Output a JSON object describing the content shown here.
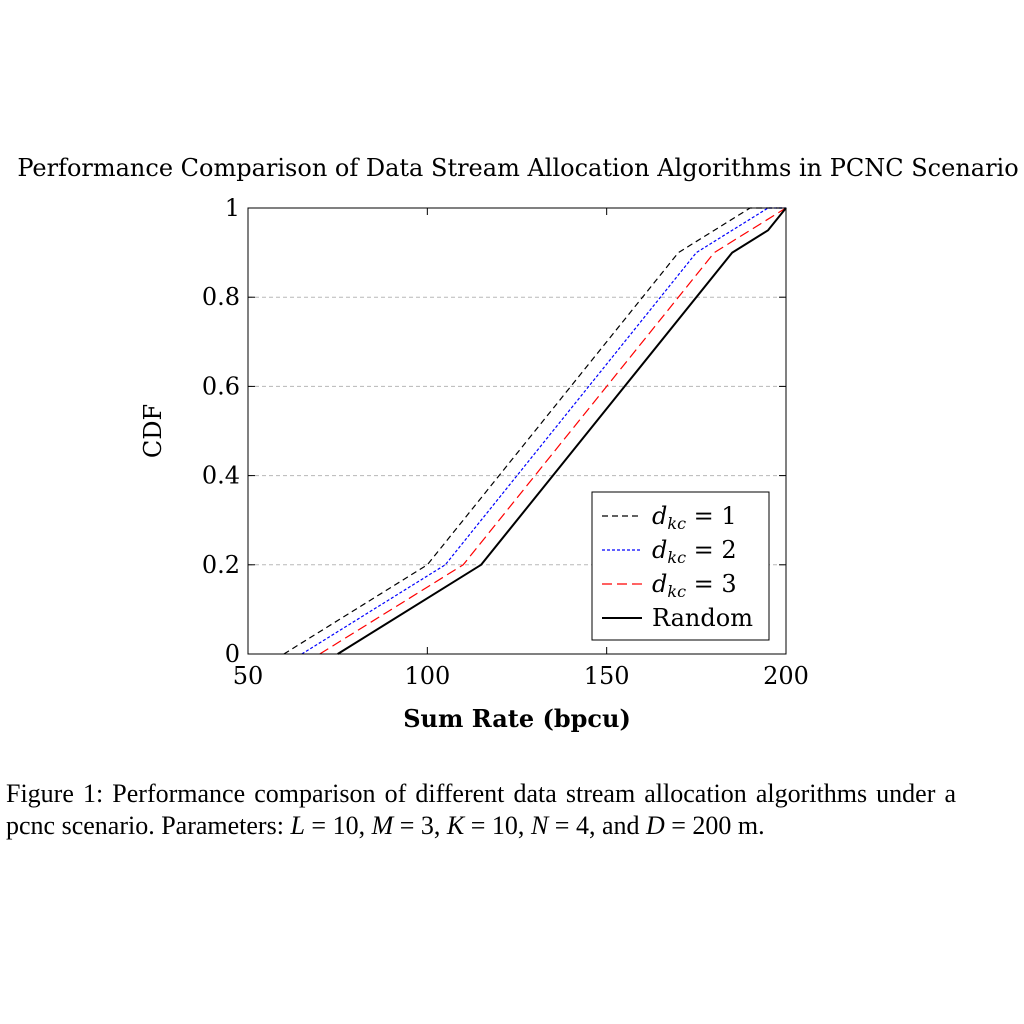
{
  "chart_data": {
    "type": "line",
    "title": "Performance Comparison of Data Stream Allocation Algorithms in PCNC Scenario",
    "xlabel": "Sum Rate (bpcu)",
    "ylabel": "CDF",
    "xlim": [
      50,
      200
    ],
    "ylim": [
      0,
      1
    ],
    "xticks": [
      50,
      100,
      150,
      200
    ],
    "yticks": [
      0,
      0.2,
      0.4,
      0.6,
      0.8,
      1
    ],
    "grid": "horizontal dashed",
    "legend_position": "bottom-right",
    "series": [
      {
        "name": "d_kc = 1",
        "label_parts": [
          "d",
          "kc",
          " = 1"
        ],
        "color": "#000000",
        "style": "dashed",
        "x": [
          60,
          100,
          120,
          170,
          190,
          200
        ],
        "y": [
          0,
          0.2,
          0.4,
          0.9,
          1.0,
          1.0
        ]
      },
      {
        "name": "d_kc = 2",
        "label_parts": [
          "d",
          "kc",
          " = 2"
        ],
        "color": "#0000ff",
        "style": "dotted",
        "x": [
          65,
          105,
          125,
          175,
          195,
          200
        ],
        "y": [
          0,
          0.2,
          0.4,
          0.9,
          1.0,
          1.0
        ]
      },
      {
        "name": "d_kc = 3",
        "label_parts": [
          "d",
          "kc",
          " = 3"
        ],
        "color": "#ff0000",
        "style": "loosely-dashed",
        "x": [
          70,
          110,
          130,
          180,
          200
        ],
        "y": [
          0,
          0.2,
          0.4,
          0.9,
          1.0
        ]
      },
      {
        "name": "Random",
        "label_parts": [
          "Random",
          "",
          ""
        ],
        "color": "#000000",
        "style": "solid",
        "x": [
          75,
          115,
          135,
          185,
          195,
          200
        ],
        "y": [
          0,
          0.2,
          0.4,
          0.9,
          0.95,
          1.0
        ]
      }
    ]
  },
  "caption": {
    "prefix": "Figure 1: Performance comparison of different data stream allocation algorithms under a pcnc scenario. Parameters: ",
    "p1_var": "L",
    "p1_val": " = 10, ",
    "p2_var": "M",
    "p2_val": " = 3, ",
    "p3_var": "K",
    "p3_val": " = 10, ",
    "p4_var": "N",
    "p4_val": " = 4, and ",
    "p5_var": "D",
    "p5_val": " = 200 m."
  }
}
